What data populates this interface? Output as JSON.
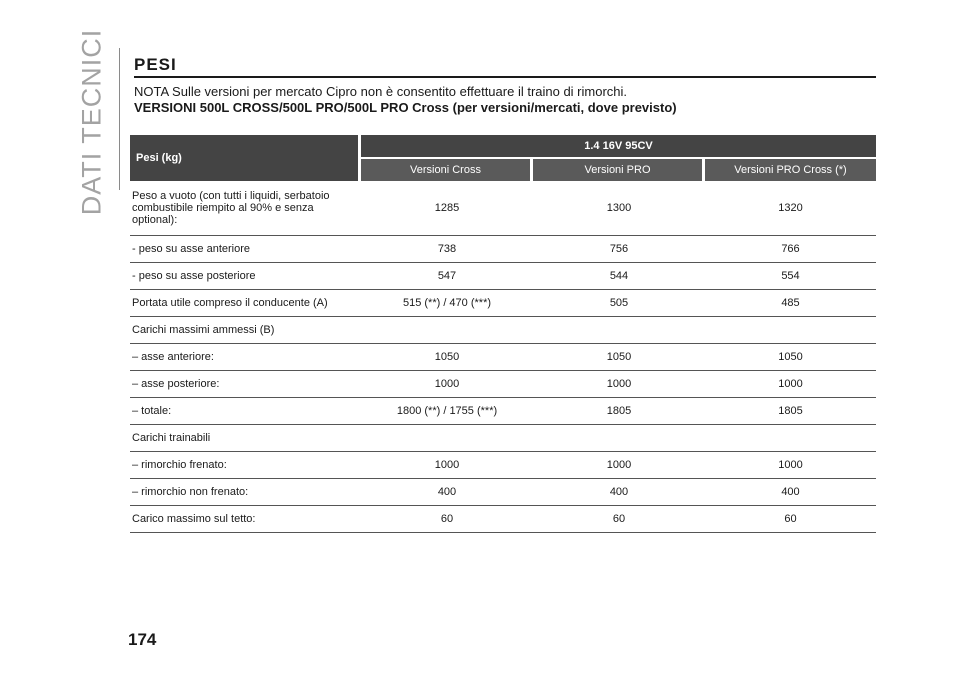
{
  "side_title": "DATI TECNICI",
  "page_number": "174",
  "section_title": "PESI",
  "note": "NOTA Sulle versioni per mercato Cipro non è consentito effettuare il traino di rimorchi.",
  "subtitle": "VERSIONI 500L CROSS/500L PRO/500L PRO Cross (per versioni/mercati, dove previsto)",
  "table": {
    "header_label": "Pesi (kg)",
    "engine": "1.4 16V 95CV",
    "versions": [
      "Versioni Cross",
      "Versioni PRO",
      "Versioni PRO Cross (*)"
    ],
    "rows": [
      {
        "label": "Peso a vuoto (con tutti i liquidi, serbatoio combustibile riempito al 90% e senza optional):",
        "values": [
          "1285",
          "1300",
          "1320"
        ]
      },
      {
        "label": "- peso su asse anteriore",
        "values": [
          "738",
          "756",
          "766"
        ]
      },
      {
        "label": "- peso su asse posteriore",
        "values": [
          "547",
          "544",
          "554"
        ]
      },
      {
        "label": "Portata utile compreso il conducente (A)",
        "values": [
          "515 (**) / 470 (***)",
          "505",
          "485"
        ]
      },
      {
        "label": "Carichi massimi ammessi (B)",
        "values": [
          "",
          "",
          ""
        ]
      },
      {
        "label": "– asse anteriore:",
        "values": [
          "1050",
          "1050",
          "1050"
        ]
      },
      {
        "label": "– asse posteriore:",
        "values": [
          "1000",
          "1000",
          "1000"
        ]
      },
      {
        "label": "– totale:",
        "values": [
          "1800 (**) / 1755 (***)",
          "1805",
          "1805"
        ]
      },
      {
        "label": "Carichi trainabili",
        "values": [
          "",
          "",
          ""
        ]
      },
      {
        "label": "– rimorchio frenato:",
        "values": [
          "1000",
          "1000",
          "1000"
        ]
      },
      {
        "label": "– rimorchio non frenato:",
        "values": [
          "400",
          "400",
          "400"
        ]
      },
      {
        "label": "Carico massimo sul tetto:",
        "values": [
          "60",
          "60",
          "60"
        ]
      }
    ]
  }
}
